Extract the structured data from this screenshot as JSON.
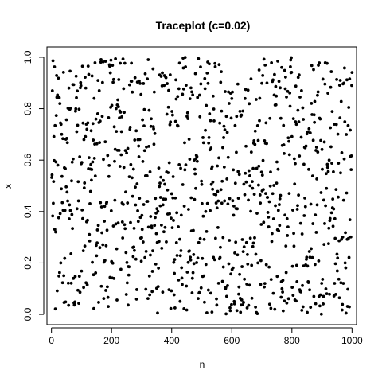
{
  "chart_data": {
    "type": "scatter",
    "title": "Traceplot (c=0.02)",
    "xlabel": "n",
    "ylabel": "x",
    "xlim": [
      -15,
      1015
    ],
    "ylim": [
      -0.04,
      1.04
    ],
    "xticks": [
      0,
      200,
      400,
      600,
      800,
      1000
    ],
    "yticks": [
      0.0,
      0.2,
      0.4,
      0.6,
      0.8,
      1.0
    ],
    "xtick_labels": [
      "0",
      "200",
      "400",
      "600",
      "800",
      "1000"
    ],
    "ytick_labels": [
      "0.0",
      "0.2",
      "0.4",
      "0.6",
      "0.8",
      "1.0"
    ],
    "grid": false,
    "marker_color": "#000000",
    "n_points": 1000,
    "point_generation": "sequence of 1000 values in [0,1]; values approximately uniformly distributed, x index n = 1..1000"
  }
}
